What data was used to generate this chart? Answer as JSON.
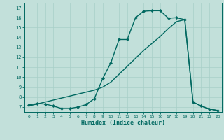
{
  "xlabel": "Humidex (Indice chaleur)",
  "bg_color": "#c2e0da",
  "grid_color": "#a8cfc8",
  "line_color": "#006860",
  "xlim": [
    -0.5,
    23.5
  ],
  "ylim": [
    6.5,
    17.5
  ],
  "xticks": [
    0,
    1,
    2,
    3,
    4,
    5,
    6,
    7,
    8,
    9,
    10,
    11,
    12,
    13,
    14,
    15,
    16,
    17,
    18,
    19,
    20,
    21,
    22,
    23
  ],
  "yticks": [
    7,
    8,
    9,
    10,
    11,
    12,
    13,
    14,
    15,
    16,
    17
  ],
  "curve1_x": [
    0,
    1,
    2,
    3,
    4,
    5,
    6,
    7,
    8,
    9,
    10,
    11,
    12,
    13,
    14,
    15,
    16,
    17,
    18,
    19,
    20,
    21,
    22,
    23
  ],
  "curve1_y": [
    7.2,
    7.35,
    7.3,
    7.1,
    6.85,
    6.85,
    7.0,
    7.25,
    7.85,
    9.85,
    11.45,
    13.8,
    13.8,
    16.0,
    16.65,
    16.7,
    16.7,
    15.95,
    16.0,
    15.8,
    7.5,
    7.1,
    6.8,
    6.65
  ],
  "curve2_x": [
    0,
    1,
    2,
    3,
    4,
    5,
    6,
    7,
    8,
    9,
    10,
    11,
    12,
    13,
    14,
    15,
    16,
    17,
    18,
    19,
    20,
    21,
    22,
    23
  ],
  "curve2_y": [
    7.1,
    7.3,
    7.5,
    7.7,
    7.9,
    8.1,
    8.3,
    8.5,
    8.7,
    9.0,
    9.5,
    10.3,
    11.1,
    11.9,
    12.7,
    13.4,
    14.1,
    14.9,
    15.6,
    15.8,
    7.5,
    7.1,
    6.8,
    6.65
  ],
  "line_width": 1.0,
  "marker_size": 2.2
}
